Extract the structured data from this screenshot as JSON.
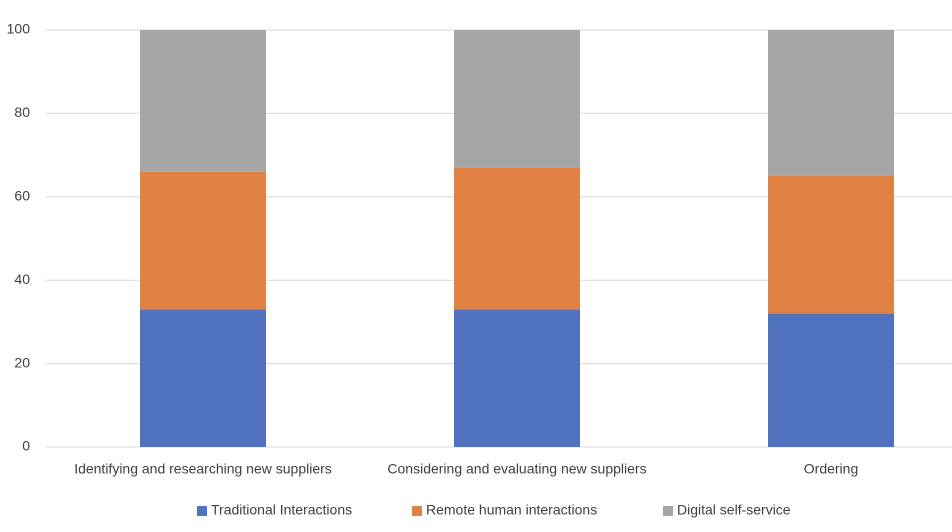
{
  "chart_data": {
    "type": "stacked_bar",
    "categories": [
      "Identifying and researching new suppliers",
      "Considering and evaluating new suppliers",
      "Ordering"
    ],
    "series": [
      {
        "name": "Traditional Interactions",
        "color": "#4f71be",
        "values": [
          33,
          33,
          32
        ]
      },
      {
        "name": "Remote human interactions",
        "color": "#df8244",
        "values": [
          33,
          34,
          33
        ]
      },
      {
        "name": "Digital self-service",
        "color": "#a5a5a5",
        "values": [
          34,
          33,
          35
        ]
      }
    ],
    "ylim": [
      0,
      100
    ],
    "yticks": [
      0,
      20,
      40,
      60,
      80,
      100
    ],
    "grid": true,
    "legend": "bottom"
  }
}
